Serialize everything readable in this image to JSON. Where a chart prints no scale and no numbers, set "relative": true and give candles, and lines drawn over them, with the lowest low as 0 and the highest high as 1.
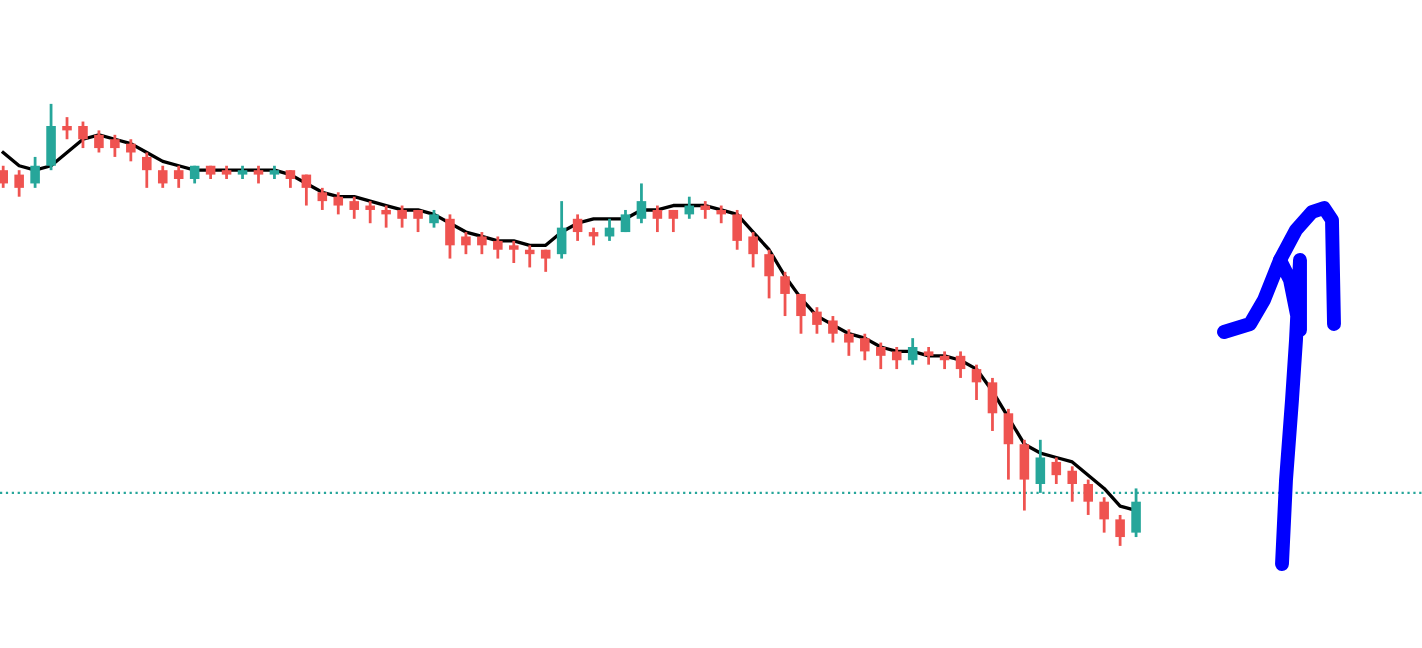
{
  "chart_data": {
    "type": "candlestick",
    "relative": true,
    "categories": [
      null,
      null,
      null,
      null,
      null,
      null,
      null,
      null,
      null,
      null,
      null,
      null,
      null,
      null,
      null,
      null,
      null,
      null,
      null,
      null,
      null,
      null,
      null,
      null,
      null,
      null,
      null,
      null,
      null,
      null,
      null,
      null,
      null,
      null,
      null,
      null,
      null,
      null,
      null,
      null,
      null,
      null,
      null,
      null,
      null,
      null,
      null,
      null,
      null,
      null,
      null,
      null,
      null,
      null,
      null,
      null,
      null,
      null,
      null,
      null,
      null,
      null,
      null,
      null,
      null,
      null,
      null,
      null,
      null,
      null,
      null,
      null
    ],
    "ohlc": [
      [
        0.85,
        0.86,
        0.81,
        0.82
      ],
      [
        0.84,
        0.85,
        0.79,
        0.81
      ],
      [
        0.82,
        0.88,
        0.81,
        0.86
      ],
      [
        0.86,
        1.0,
        0.85,
        0.95
      ],
      [
        0.95,
        0.97,
        0.92,
        0.94
      ],
      [
        0.95,
        0.96,
        0.9,
        0.92
      ],
      [
        0.93,
        0.94,
        0.89,
        0.9
      ],
      [
        0.92,
        0.93,
        0.88,
        0.9
      ],
      [
        0.91,
        0.92,
        0.87,
        0.89
      ],
      [
        0.88,
        0.89,
        0.81,
        0.85
      ],
      [
        0.85,
        0.86,
        0.81,
        0.82
      ],
      [
        0.85,
        0.86,
        0.81,
        0.83
      ],
      [
        0.83,
        0.86,
        0.82,
        0.86
      ],
      [
        0.86,
        0.86,
        0.83,
        0.84
      ],
      [
        0.85,
        0.86,
        0.83,
        0.84
      ],
      [
        0.84,
        0.86,
        0.83,
        0.85
      ],
      [
        0.85,
        0.86,
        0.82,
        0.84
      ],
      [
        0.84,
        0.86,
        0.83,
        0.85
      ],
      [
        0.85,
        0.85,
        0.81,
        0.83
      ],
      [
        0.84,
        0.84,
        0.77,
        0.81
      ],
      [
        0.8,
        0.81,
        0.76,
        0.78
      ],
      [
        0.79,
        0.8,
        0.75,
        0.77
      ],
      [
        0.78,
        0.79,
        0.74,
        0.76
      ],
      [
        0.77,
        0.78,
        0.73,
        0.76
      ],
      [
        0.76,
        0.77,
        0.72,
        0.75
      ],
      [
        0.76,
        0.77,
        0.72,
        0.74
      ],
      [
        0.76,
        0.76,
        0.71,
        0.74
      ],
      [
        0.73,
        0.76,
        0.72,
        0.75
      ],
      [
        0.74,
        0.75,
        0.65,
        0.68
      ],
      [
        0.7,
        0.71,
        0.66,
        0.68
      ],
      [
        0.7,
        0.71,
        0.66,
        0.68
      ],
      [
        0.69,
        0.7,
        0.65,
        0.67
      ],
      [
        0.68,
        0.69,
        0.64,
        0.67
      ],
      [
        0.67,
        0.68,
        0.63,
        0.66
      ],
      [
        0.67,
        0.67,
        0.62,
        0.65
      ],
      [
        0.66,
        0.78,
        0.65,
        0.72
      ],
      [
        0.74,
        0.75,
        0.69,
        0.71
      ],
      [
        0.71,
        0.72,
        0.68,
        0.7
      ],
      [
        0.7,
        0.74,
        0.69,
        0.72
      ],
      [
        0.71,
        0.76,
        0.71,
        0.75
      ],
      [
        0.74,
        0.82,
        0.73,
        0.78
      ],
      [
        0.76,
        0.77,
        0.71,
        0.74
      ],
      [
        0.76,
        0.76,
        0.71,
        0.74
      ],
      [
        0.75,
        0.79,
        0.74,
        0.77
      ],
      [
        0.77,
        0.78,
        0.74,
        0.76
      ],
      [
        0.76,
        0.77,
        0.73,
        0.75
      ],
      [
        0.75,
        0.76,
        0.67,
        0.69
      ],
      [
        0.7,
        0.71,
        0.63,
        0.66
      ],
      [
        0.66,
        0.67,
        0.56,
        0.61
      ],
      [
        0.61,
        0.62,
        0.52,
        0.57
      ],
      [
        0.57,
        0.57,
        0.48,
        0.52
      ],
      [
        0.53,
        0.54,
        0.48,
        0.5
      ],
      [
        0.51,
        0.52,
        0.46,
        0.48
      ],
      [
        0.48,
        0.49,
        0.43,
        0.46
      ],
      [
        0.47,
        0.48,
        0.42,
        0.44
      ],
      [
        0.45,
        0.46,
        0.4,
        0.43
      ],
      [
        0.44,
        0.45,
        0.4,
        0.42
      ],
      [
        0.42,
        0.47,
        0.41,
        0.45
      ],
      [
        0.44,
        0.45,
        0.41,
        0.43
      ],
      [
        0.43,
        0.44,
        0.4,
        0.42
      ],
      [
        0.43,
        0.44,
        0.38,
        0.4
      ],
      [
        0.4,
        0.41,
        0.33,
        0.37
      ],
      [
        0.37,
        0.38,
        0.26,
        0.3
      ],
      [
        0.3,
        0.31,
        0.15,
        0.23
      ],
      [
        0.23,
        0.24,
        0.08,
        0.15
      ],
      [
        0.14,
        0.24,
        0.12,
        0.2
      ],
      [
        0.19,
        0.2,
        0.14,
        0.16
      ],
      [
        0.17,
        0.18,
        0.1,
        0.14
      ],
      [
        0.14,
        0.15,
        0.07,
        0.1
      ],
      [
        0.1,
        0.11,
        0.03,
        0.06
      ],
      [
        0.06,
        0.07,
        0.0,
        0.02
      ],
      [
        0.03,
        0.13,
        0.02,
        0.1
      ]
    ],
    "colors": [
      "#ef5350",
      "#ef5350",
      "#26a69a",
      "#26a69a",
      "#ef5350",
      "#ef5350",
      "#ef5350",
      "#ef5350",
      "#ef5350",
      "#ef5350",
      "#ef5350",
      "#ef5350",
      "#26a69a",
      "#ef5350",
      "#ef5350",
      "#26a69a",
      "#ef5350",
      "#26a69a",
      "#ef5350",
      "#ef5350",
      "#ef5350",
      "#ef5350",
      "#ef5350",
      "#ef5350",
      "#ef5350",
      "#ef5350",
      "#ef5350",
      "#26a69a",
      "#ef5350",
      "#ef5350",
      "#ef5350",
      "#ef5350",
      "#ef5350",
      "#ef5350",
      "#ef5350",
      "#26a69a",
      "#ef5350",
      "#ef5350",
      "#26a69a",
      "#26a69a",
      "#26a69a",
      "#ef5350",
      "#ef5350",
      "#26a69a",
      "#ef5350",
      "#ef5350",
      "#ef5350",
      "#ef5350",
      "#ef5350",
      "#ef5350",
      "#ef5350",
      "#ef5350",
      "#ef5350",
      "#ef5350",
      "#ef5350",
      "#ef5350",
      "#ef5350",
      "#26a69a",
      "#ef5350",
      "#ef5350",
      "#ef5350",
      "#ef5350",
      "#ef5350",
      "#ef5350",
      "#ef5350",
      "#26a69a",
      "#ef5350",
      "#ef5350",
      "#ef5350",
      "#ef5350",
      "#ef5350",
      "#26a69a"
    ],
    "series": [
      {
        "type": "line",
        "color": "#000000",
        "values": [
          0.89,
          0.86,
          0.85,
          0.86,
          0.89,
          0.92,
          0.93,
          0.92,
          0.91,
          0.89,
          0.87,
          0.86,
          0.85,
          0.85,
          0.85,
          0.85,
          0.85,
          0.85,
          0.84,
          0.82,
          0.8,
          0.79,
          0.79,
          0.78,
          0.77,
          0.76,
          0.76,
          0.75,
          0.73,
          0.71,
          0.7,
          0.69,
          0.69,
          0.68,
          0.68,
          0.71,
          0.73,
          0.74,
          0.74,
          0.74,
          0.76,
          0.76,
          0.77,
          0.77,
          0.77,
          0.76,
          0.75,
          0.71,
          0.67,
          0.61,
          0.56,
          0.52,
          0.5,
          0.48,
          0.47,
          0.45,
          0.44,
          0.44,
          0.43,
          0.43,
          0.42,
          0.4,
          0.35,
          0.29,
          0.23,
          0.21,
          0.2,
          0.19,
          0.16,
          0.13,
          0.09,
          0.08
        ]
      }
    ],
    "ref_lines": [
      {
        "axis": "y",
        "value": 0.12,
        "color": "#26a69a",
        "line_style": "dotted"
      }
    ]
  }
}
